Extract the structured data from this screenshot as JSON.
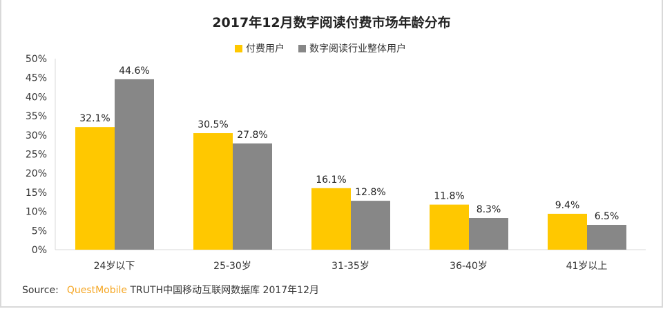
{
  "chart_data": {
    "type": "bar",
    "title": "2017年12月数字阅读付费市场年龄分布",
    "categories": [
      "24岁以下",
      "25-30岁",
      "31-35岁",
      "36-40岁",
      "41岁以上"
    ],
    "series": [
      {
        "name": "付费用户",
        "color": "#FFC800",
        "values": [
          32.1,
          30.5,
          16.1,
          11.8,
          9.4
        ],
        "labels": [
          "32.1%",
          "30.5%",
          "16.1%",
          "11.8%",
          "9.4%"
        ]
      },
      {
        "name": "数字阅读行业整体用户",
        "color": "#878787",
        "values": [
          44.6,
          27.8,
          12.8,
          8.3,
          6.5
        ],
        "labels": [
          "44.6%",
          "27.8%",
          "12.8%",
          "8.3%",
          "6.5%"
        ]
      }
    ],
    "ylim": [
      0,
      50
    ],
    "yticks": [
      "0%",
      "5%",
      "10%",
      "15%",
      "20%",
      "25%",
      "30%",
      "35%",
      "40%",
      "45%",
      "50%"
    ],
    "xlabel": "",
    "ylabel": "",
    "grid": false,
    "legend": "top-center"
  },
  "source": {
    "label": "Source:",
    "brand": "QuestMobile",
    "text": "TRUTH中国移动互联网数据库 2017年12月"
  }
}
